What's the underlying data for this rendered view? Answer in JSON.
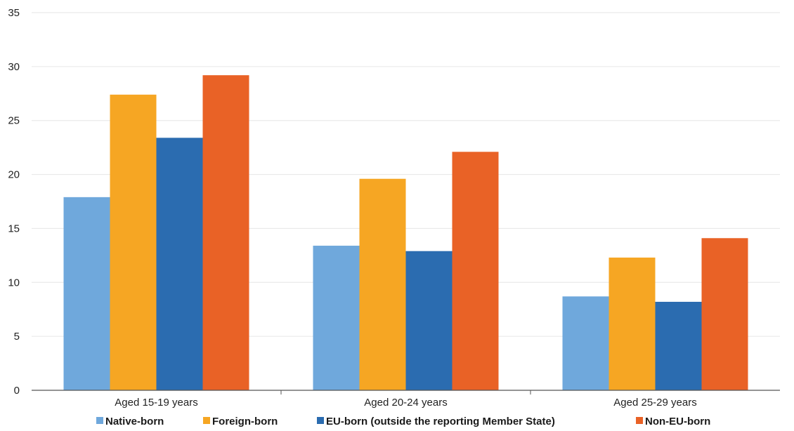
{
  "chart_data": {
    "type": "bar",
    "title": "",
    "xlabel": "",
    "ylabel": "",
    "ylim": [
      0,
      35
    ],
    "yticks": [
      0,
      5,
      10,
      15,
      20,
      25,
      30,
      35
    ],
    "grid": true,
    "legend_position": "bottom",
    "categories": [
      "Aged 15-19 years",
      "Aged 20-24 years",
      "Aged 25-29 years"
    ],
    "series": [
      {
        "name": "Native-born",
        "color": "#6fa8dc",
        "values": [
          17.9,
          13.4,
          8.7
        ]
      },
      {
        "name": "Foreign-born",
        "color": "#f6a623",
        "values": [
          27.4,
          19.6,
          12.3
        ]
      },
      {
        "name": "EU-born (outside the reporting Member State)",
        "color": "#2b6cb0",
        "values": [
          23.4,
          12.9,
          8.2
        ]
      },
      {
        "name": "Non-EU-born",
        "color": "#e96226",
        "values": [
          29.2,
          22.1,
          14.1
        ]
      }
    ]
  }
}
